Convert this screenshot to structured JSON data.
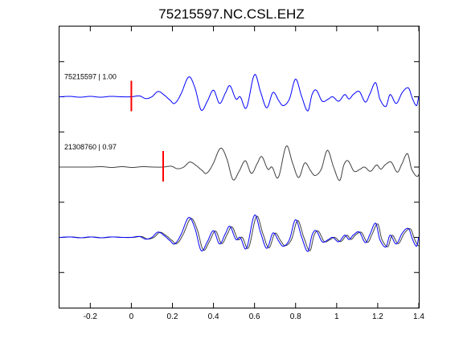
{
  "chart_data": {
    "type": "line",
    "title": "75215597.NC.CSL.EHZ",
    "xlabel": "",
    "ylabel": "",
    "xlim": [
      -0.35,
      1.4
    ],
    "x_ticks": [
      -0.2,
      0,
      0.2,
      0.4,
      0.6,
      0.8,
      1,
      1.2,
      1.4
    ],
    "x_tick_labels": [
      "-0.2",
      "0",
      "0.2",
      "0.4",
      "0.6",
      "0.8",
      "1",
      "1.2",
      "1.4"
    ],
    "ylim": [
      -3.5,
      0.5
    ],
    "y_ticks": [
      -3,
      -2.5,
      -2,
      -1.5,
      -1,
      -0.5,
      0
    ],
    "grid": false,
    "colors": {
      "blue": "#0000ff",
      "dark": "#404040",
      "pick": "#ff0000",
      "axis": "#000000"
    },
    "traces": [
      {
        "name": "master",
        "label": "75215597 | 1.00",
        "color": "blue",
        "offset": -0.5,
        "pick_x": 0.0,
        "shift": 0.0,
        "display_scale": 1.0
      },
      {
        "name": "correlated",
        "label": "21308760 | 0.97",
        "color": "dark",
        "offset": -1.5,
        "pick_x": 0.155,
        "shift": 0.155,
        "display_scale": 0.95
      },
      {
        "name": "overlay",
        "label": "",
        "color": "blue",
        "offset": -2.5,
        "pick_x": null,
        "shift": 0.0,
        "display_scale": 1.0,
        "overlay_color": "dark",
        "overlay_shift": 0.01,
        "overlay_scale": 0.95
      }
    ],
    "waveform": {
      "amplitude_unit": "normalized",
      "points": [
        [
          -0.35,
          0.0
        ],
        [
          -0.3,
          0.01
        ],
        [
          -0.25,
          -0.01
        ],
        [
          -0.2,
          0.01
        ],
        [
          -0.15,
          -0.01
        ],
        [
          -0.1,
          0.01
        ],
        [
          -0.05,
          0.0
        ],
        [
          0.0,
          0.0
        ],
        [
          0.04,
          0.02
        ],
        [
          0.07,
          -0.04
        ],
        [
          0.1,
          0.0
        ],
        [
          0.13,
          0.12
        ],
        [
          0.16,
          0.04
        ],
        [
          0.19,
          -0.08
        ],
        [
          0.21,
          -0.15
        ],
        [
          0.24,
          0.05
        ],
        [
          0.28,
          0.45
        ],
        [
          0.31,
          0.2
        ],
        [
          0.34,
          -0.3
        ],
        [
          0.37,
          -0.1
        ],
        [
          0.4,
          0.15
        ],
        [
          0.43,
          -0.15
        ],
        [
          0.46,
          0.1
        ],
        [
          0.48,
          0.25
        ],
        [
          0.51,
          -0.05
        ],
        [
          0.53,
          0.0
        ],
        [
          0.56,
          -0.25
        ],
        [
          0.6,
          0.5
        ],
        [
          0.63,
          0.1
        ],
        [
          0.66,
          -0.25
        ],
        [
          0.69,
          0.1
        ],
        [
          0.72,
          -0.1
        ],
        [
          0.74,
          -0.2
        ],
        [
          0.77,
          -0.05
        ],
        [
          0.8,
          0.4
        ],
        [
          0.83,
          0.0
        ],
        [
          0.86,
          -0.32
        ],
        [
          0.88,
          0.05
        ],
        [
          0.9,
          0.15
        ],
        [
          0.93,
          -0.1
        ],
        [
          0.96,
          -0.05
        ],
        [
          0.98,
          0.0
        ],
        [
          1.01,
          -0.1
        ],
        [
          1.04,
          0.05
        ],
        [
          1.06,
          -0.05
        ],
        [
          1.08,
          0.05
        ],
        [
          1.11,
          0.12
        ],
        [
          1.14,
          -0.12
        ],
        [
          1.16,
          0.05
        ],
        [
          1.19,
          0.32
        ],
        [
          1.21,
          -0.05
        ],
        [
          1.24,
          -0.22
        ],
        [
          1.26,
          0.05
        ],
        [
          1.29,
          -0.15
        ],
        [
          1.32,
          0.1
        ],
        [
          1.35,
          0.2
        ],
        [
          1.37,
          -0.05
        ],
        [
          1.39,
          -0.2
        ],
        [
          1.4,
          0.0
        ]
      ]
    }
  }
}
